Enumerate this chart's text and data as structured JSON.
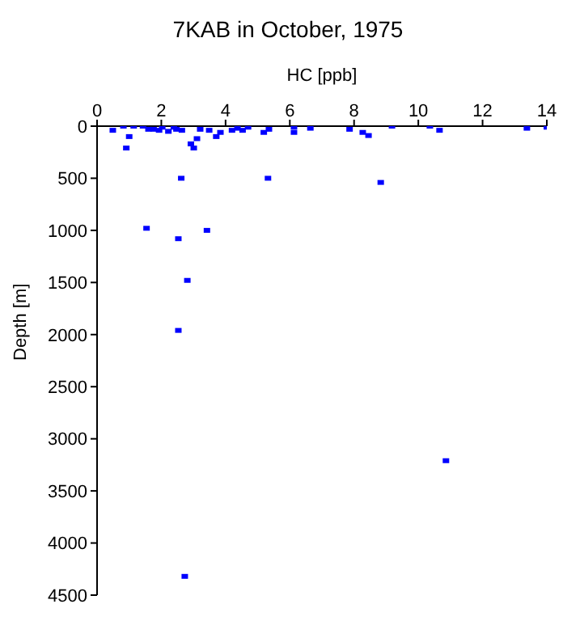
{
  "chart_data": {
    "type": "scatter",
    "title": "7KAB in October, 1975",
    "xlabel": "HC [ppb]",
    "ylabel": "Depth [m]",
    "xlim": [
      0,
      14
    ],
    "xticks": [
      0,
      2,
      4,
      6,
      8,
      10,
      12,
      14
    ],
    "ylim": [
      4500,
      0
    ],
    "yticks": [
      0,
      500,
      1000,
      1500,
      2000,
      2500,
      3000,
      3500,
      4000,
      4500
    ],
    "grid": false,
    "legend": false,
    "marker": "square",
    "series": [
      {
        "color": "#0000ff",
        "x": [
          0.49,
          0.82,
          0.91,
          1.0,
          1.14,
          1.43,
          1.6,
          1.76,
          1.93,
          2.03,
          2.22,
          2.39,
          2.47,
          2.64,
          2.62,
          2.92,
          3.01,
          3.11,
          3.21,
          3.49,
          3.71,
          3.84,
          4.2,
          4.37,
          4.53,
          4.7,
          5.19,
          5.32,
          5.35,
          6.13,
          6.13,
          6.64,
          7.86,
          8.27,
          8.45,
          8.83,
          9.18,
          10.36,
          10.66,
          13.38,
          14.0,
          1.54,
          2.53,
          3.42,
          2.81,
          2.53,
          2.73,
          10.86
        ],
        "values": [
          40,
          0,
          210,
          100,
          0,
          0,
          30,
          30,
          40,
          10,
          50,
          10,
          30,
          40,
          500,
          170,
          210,
          120,
          30,
          40,
          100,
          60,
          40,
          20,
          40,
          10,
          60,
          500,
          30,
          10,
          60,
          20,
          30,
          60,
          90,
          540,
          0,
          0,
          40,
          20,
          10,
          980,
          1080,
          1000,
          1480,
          1960,
          4320,
          3210
        ]
      }
    ]
  }
}
